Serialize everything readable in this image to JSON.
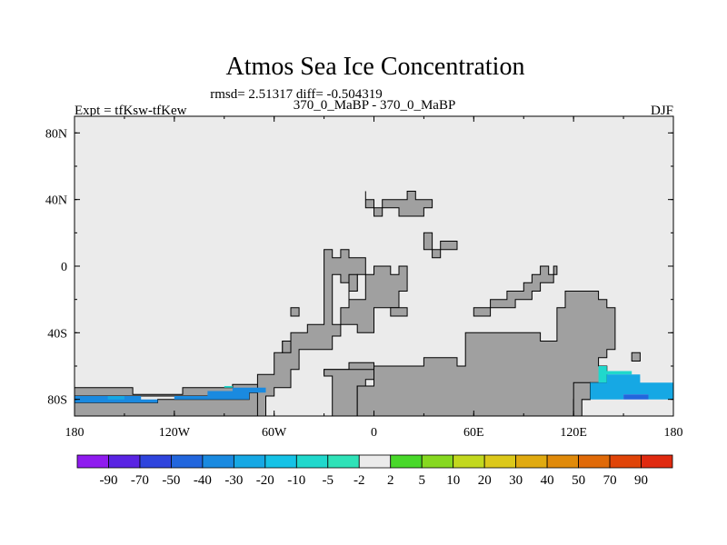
{
  "chart_data": {
    "type": "heatmap",
    "title": "Atmos Sea Ice Concentration",
    "stats": "rmsd= 2.51317 diff= -0.504319",
    "experiment": "Expt = tfKsw-tfKew",
    "comparison": "370_0_MaBP - 370_0_MaBP",
    "season": "DJF",
    "x_ticks": [
      "180",
      "120W",
      "60W",
      "0",
      "60E",
      "120E",
      "180"
    ],
    "x_tick_values": [
      -180,
      -120,
      -60,
      0,
      60,
      120,
      180
    ],
    "y_ticks": [
      "80N",
      "40N",
      "0",
      "40S",
      "80S"
    ],
    "y_tick_values": [
      80,
      40,
      0,
      -40,
      -80
    ],
    "xlim": [
      -180,
      180
    ],
    "ylim": [
      -90,
      90
    ],
    "levels": [
      "-90",
      "-70",
      "-50",
      "-40",
      "-30",
      "-20",
      "-10",
      "-5",
      "-2",
      "2",
      "5",
      "10",
      "20",
      "30",
      "40",
      "50",
      "70",
      "90"
    ],
    "level_colors": [
      "#8f1bef",
      "#5a24e3",
      "#2f44dd",
      "#2266dd",
      "#1a8ae0",
      "#16a8e4",
      "#15c2e6",
      "#20d8cc",
      "#2fe2b8",
      "#ebebeb",
      "#48d82a",
      "#86d820",
      "#c2d81e",
      "#dcc81a",
      "#e0aa10",
      "#e08a0a",
      "#e06a08",
      "#e04408",
      "#e02a10"
    ],
    "colors": {
      "ocean": "#ebebeb",
      "land": "#a0a0a0",
      "coastline": "#000000"
    },
    "land_polygons": [
      [
        [
          -180,
          -90
        ],
        [
          -180,
          -73
        ],
        [
          -145,
          -73
        ],
        [
          -145,
          -77
        ],
        [
          -115,
          -77
        ],
        [
          -115,
          -73
        ],
        [
          -85,
          -73
        ],
        [
          -85,
          -71
        ],
        [
          -65,
          -71
        ],
        [
          -65,
          -78
        ],
        [
          -180,
          -78
        ]
      ],
      [
        [
          -180,
          -90
        ],
        [
          -180,
          -82
        ],
        [
          -130,
          -82
        ],
        [
          -130,
          -80
        ],
        [
          -75,
          -80
        ],
        [
          -75,
          -76
        ],
        [
          -65,
          -76
        ],
        [
          -65,
          -90
        ]
      ],
      [
        [
          -65,
          -90
        ],
        [
          -65,
          -78
        ],
        [
          -60,
          -78
        ],
        [
          -60,
          -73
        ],
        [
          -50,
          -73
        ],
        [
          -50,
          -62
        ],
        [
          -45,
          -62
        ],
        [
          -45,
          -50
        ],
        [
          -25,
          -50
        ],
        [
          -25,
          -42
        ],
        [
          -20,
          -42
        ],
        [
          -20,
          -25
        ],
        [
          -15,
          -25
        ],
        [
          -15,
          -15
        ],
        [
          -10,
          -15
        ],
        [
          -10,
          -5
        ],
        [
          0,
          -5
        ],
        [
          0,
          0
        ],
        [
          10,
          0
        ],
        [
          10,
          -5
        ],
        [
          15,
          -5
        ],
        [
          15,
          0
        ],
        [
          20,
          0
        ],
        [
          20,
          -15
        ],
        [
          15,
          -15
        ],
        [
          15,
          -25
        ],
        [
          0,
          -25
        ],
        [
          0,
          -40
        ],
        [
          -10,
          -40
        ],
        [
          -10,
          -35
        ],
        [
          -25,
          -35
        ],
        [
          -25,
          -5
        ],
        [
          -20,
          -5
        ],
        [
          -20,
          -10
        ],
        [
          -15,
          -10
        ],
        [
          -15,
          -20
        ],
        [
          -5,
          -20
        ],
        [
          -5,
          5
        ],
        [
          -15,
          5
        ],
        [
          -15,
          10
        ],
        [
          -20,
          10
        ],
        [
          -20,
          5
        ],
        [
          -25,
          5
        ],
        [
          -25,
          10
        ],
        [
          -30,
          10
        ],
        [
          -30,
          -35
        ],
        [
          -40,
          -35
        ],
        [
          -40,
          -40
        ],
        [
          -50,
          -40
        ],
        [
          -50,
          -45
        ],
        [
          -55,
          -45
        ],
        [
          -55,
          -52
        ],
        [
          -60,
          -52
        ],
        [
          -60,
          -65
        ],
        [
          -70,
          -65
        ],
        [
          -70,
          -90
        ]
      ],
      [
        [
          -30,
          -62
        ],
        [
          -15,
          -62
        ],
        [
          -15,
          -58
        ],
        [
          0,
          -58
        ],
        [
          0,
          -65
        ],
        [
          -30,
          -65
        ]
      ],
      [
        [
          -25,
          -90
        ],
        [
          -25,
          -66
        ],
        [
          -30,
          -66
        ],
        [
          -30,
          -62
        ],
        [
          0,
          -62
        ],
        [
          0,
          -68
        ],
        [
          -5,
          -68
        ],
        [
          -5,
          -72
        ],
        [
          -10,
          -72
        ],
        [
          -10,
          -90
        ]
      ],
      [
        [
          -10,
          -90
        ],
        [
          -10,
          -72
        ],
        [
          0,
          -72
        ],
        [
          0,
          -60
        ],
        [
          30,
          -60
        ],
        [
          30,
          -55
        ],
        [
          50,
          -55
        ],
        [
          50,
          -60
        ],
        [
          55,
          -60
        ],
        [
          55,
          -40
        ],
        [
          100,
          -40
        ],
        [
          100,
          -45
        ],
        [
          110,
          -45
        ],
        [
          110,
          -25
        ],
        [
          115,
          -25
        ],
        [
          115,
          -15
        ],
        [
          135,
          -15
        ],
        [
          135,
          -20
        ],
        [
          140,
          -20
        ],
        [
          140,
          -25
        ],
        [
          145,
          -25
        ],
        [
          145,
          -50
        ],
        [
          140,
          -50
        ],
        [
          140,
          -55
        ],
        [
          135,
          -55
        ],
        [
          135,
          -60
        ],
        [
          140,
          -60
        ],
        [
          140,
          -70
        ],
        [
          130,
          -70
        ],
        [
          130,
          -80
        ],
        [
          120,
          -80
        ],
        [
          120,
          -90
        ]
      ],
      [
        [
          120,
          -90
        ],
        [
          120,
          -70
        ],
        [
          130,
          -70
        ],
        [
          130,
          -80
        ],
        [
          125,
          -80
        ],
        [
          125,
          -90
        ]
      ],
      [
        [
          -5,
          45
        ],
        [
          -5,
          40
        ],
        [
          0,
          40
        ],
        [
          0,
          35
        ],
        [
          5,
          35
        ],
        [
          5,
          40
        ],
        [
          20,
          40
        ],
        [
          20,
          45
        ],
        [
          25,
          45
        ],
        [
          25,
          40
        ],
        [
          35,
          40
        ],
        [
          35,
          35
        ],
        [
          30,
          35
        ],
        [
          30,
          30
        ],
        [
          15,
          30
        ],
        [
          15,
          35
        ],
        [
          5,
          35
        ],
        [
          5,
          30
        ],
        [
          0,
          30
        ],
        [
          0,
          35
        ],
        [
          -5,
          35
        ],
        [
          -5,
          45
        ]
      ],
      [
        [
          30,
          20
        ],
        [
          35,
          20
        ],
        [
          35,
          10
        ],
        [
          40,
          10
        ],
        [
          40,
          15
        ],
        [
          50,
          15
        ],
        [
          50,
          10
        ],
        [
          40,
          10
        ],
        [
          40,
          5
        ],
        [
          35,
          5
        ],
        [
          35,
          10
        ],
        [
          30,
          10
        ]
      ],
      [
        [
          60,
          -25
        ],
        [
          70,
          -25
        ],
        [
          70,
          -20
        ],
        [
          80,
          -20
        ],
        [
          80,
          -15
        ],
        [
          90,
          -15
        ],
        [
          90,
          -10
        ],
        [
          95,
          -10
        ],
        [
          95,
          -5
        ],
        [
          100,
          -5
        ],
        [
          100,
          0
        ],
        [
          105,
          0
        ],
        [
          105,
          -5
        ],
        [
          110,
          -5
        ],
        [
          110,
          0
        ],
        [
          108,
          0
        ],
        [
          108,
          -10
        ],
        [
          100,
          -10
        ],
        [
          100,
          -15
        ],
        [
          95,
          -15
        ],
        [
          95,
          -20
        ],
        [
          85,
          -20
        ],
        [
          85,
          -25
        ],
        [
          70,
          -25
        ],
        [
          70,
          -30
        ],
        [
          60,
          -30
        ]
      ],
      [
        [
          -50,
          -25
        ],
        [
          -45,
          -25
        ],
        [
          -45,
          -30
        ],
        [
          -50,
          -30
        ]
      ],
      [
        [
          -15,
          -15
        ],
        [
          -10,
          -15
        ],
        [
          -10,
          -5
        ],
        [
          -15,
          -5
        ]
      ],
      [
        [
          10,
          -25
        ],
        [
          20,
          -25
        ],
        [
          20,
          -30
        ],
        [
          10,
          -30
        ]
      ],
      [
        [
          -55,
          -45
        ],
        [
          -50,
          -45
        ],
        [
          -50,
          -52
        ],
        [
          -55,
          -52
        ]
      ],
      [
        [
          155,
          -52
        ],
        [
          160,
          -52
        ],
        [
          160,
          -57
        ],
        [
          155,
          -57
        ]
      ]
    ],
    "anomaly_cells": [
      {
        "value": -35,
        "poly": [
          [
            -180,
            -78
          ],
          [
            -140,
            -78
          ],
          [
            -140,
            -80
          ],
          [
            -120,
            -80
          ],
          [
            -120,
            -78
          ],
          [
            -100,
            -78
          ],
          [
            -100,
            -75
          ],
          [
            -85,
            -75
          ],
          [
            -85,
            -73
          ],
          [
            -65,
            -73
          ],
          [
            -65,
            -76
          ],
          [
            -75,
            -76
          ],
          [
            -75,
            -80
          ],
          [
            -130,
            -80
          ],
          [
            -130,
            -82
          ],
          [
            -180,
            -82
          ]
        ]
      },
      {
        "value": -25,
        "poly": [
          [
            -180,
            -80
          ],
          [
            -160,
            -80
          ],
          [
            -160,
            -78
          ],
          [
            -150,
            -78
          ],
          [
            -150,
            -80
          ],
          [
            -180,
            -80
          ]
        ]
      },
      {
        "value": -8,
        "poly": [
          [
            -90,
            -72
          ],
          [
            -85,
            -72
          ],
          [
            -85,
            -73
          ],
          [
            -90,
            -73
          ]
        ]
      },
      {
        "value": -6,
        "poly": [
          [
            135,
            -60
          ],
          [
            140,
            -60
          ],
          [
            140,
            -63
          ],
          [
            155,
            -63
          ],
          [
            155,
            -65
          ],
          [
            140,
            -65
          ],
          [
            140,
            -70
          ],
          [
            135,
            -70
          ]
        ]
      },
      {
        "value": -30,
        "poly": [
          [
            130,
            -70
          ],
          [
            140,
            -70
          ],
          [
            140,
            -65
          ],
          [
            160,
            -65
          ],
          [
            160,
            -70
          ],
          [
            180,
            -70
          ],
          [
            180,
            -80
          ],
          [
            165,
            -80
          ],
          [
            165,
            -77
          ],
          [
            150,
            -77
          ],
          [
            150,
            -80
          ],
          [
            130,
            -80
          ]
        ]
      },
      {
        "value": -45,
        "poly": [
          [
            150,
            -77
          ],
          [
            165,
            -77
          ],
          [
            165,
            -80
          ],
          [
            150,
            -80
          ]
        ]
      }
    ]
  }
}
